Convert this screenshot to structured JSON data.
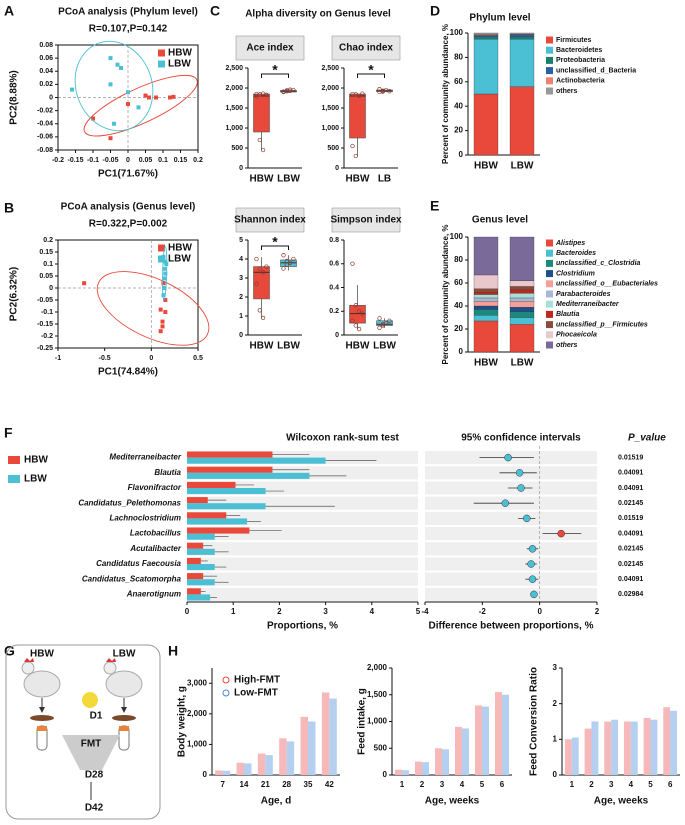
{
  "chart_data": [
    {
      "type": "scatter",
      "label": "A",
      "title": "PCoA analysis (Phylum level)",
      "subtitle": "R=0.107,P=0.142",
      "x_label": "PC1(71.67%)",
      "y_label": "PC2(8.88%)",
      "xlim": [
        -0.2,
        0.2
      ],
      "xticks": [
        -0.2,
        -0.15,
        -0.1,
        -0.05,
        0,
        0.05,
        0.1,
        0.15,
        0.2
      ],
      "ylim": [
        -0.08,
        0.08
      ],
      "yticks": [
        0.08,
        0.06,
        0.04,
        0.02,
        0,
        -0.02,
        -0.04,
        -0.06,
        -0.08
      ],
      "series": [
        {
          "name": "HBW",
          "color": "#e8493a",
          "x": [
            -0.1,
            -0.05,
            0.05,
            0.06,
            0.08,
            0.12,
            0.13,
            0.0
          ],
          "y": [
            -0.032,
            -0.062,
            0.003,
            0.0,
            0.0,
            0.0,
            0.001,
            -0.01
          ]
        },
        {
          "name": "LBW",
          "color": "#4bbfd4",
          "x": [
            -0.16,
            -0.05,
            -0.03,
            -0.02,
            -0.05,
            0.0,
            -0.04,
            0.03
          ],
          "y": [
            0.012,
            0.06,
            0.05,
            0.045,
            0.02,
            0.008,
            -0.04,
            -0.015
          ]
        }
      ]
    },
    {
      "type": "scatter",
      "label": "B",
      "title": "PCoA analysis (Genus level)",
      "subtitle": "R=0.322,P=0.002",
      "x_label": "PC1(74.84%)",
      "y_label": "PC2(6.32%)",
      "xlim": [
        -1,
        0.5
      ],
      "xticks": [
        -1,
        -0.5,
        0,
        0.5
      ],
      "ylim": [
        -0.25,
        0.2
      ],
      "yticks": [
        0.2,
        0.15,
        0.1,
        0.05,
        0,
        -0.05,
        -0.1,
        -0.15,
        -0.2,
        -0.25
      ],
      "series": [
        {
          "name": "HBW",
          "color": "#e8493a",
          "x": [
            -0.72,
            0.1,
            0.15,
            0.12,
            0.12,
            0.1,
            0.15,
            0.13
          ],
          "y": [
            0.02,
            -0.09,
            -0.1,
            -0.14,
            -0.16,
            -0.18,
            -0.05,
            0.02
          ]
        },
        {
          "name": "LBW",
          "color": "#4bbfd4",
          "x": [
            0.13,
            0.15,
            0.14,
            0.16,
            0.15,
            0.14,
            0.13,
            0.14
          ],
          "y": [
            0.13,
            0.11,
            0.08,
            0.1,
            0.06,
            0.04,
            -0.03,
            0.0
          ]
        }
      ]
    },
    {
      "type": "box",
      "label": "C",
      "title": "Alpha diversity on Genus level",
      "colors": [
        "#e8493a",
        "#4bbfd4"
      ],
      "panels": [
        {
          "title": "Ace index",
          "categories": [
            "HBW",
            "LBW"
          ],
          "ylim": [
            0,
            2500
          ],
          "yticks": [
            0,
            500,
            {
              "value": 1000,
              "label": "1,000"
            },
            {
              "value": 1500,
              "label": "1,500"
            },
            {
              "value": 2000,
              "label": "2,000"
            },
            {
              "value": 2500,
              "label": "2,500"
            }
          ],
          "boxes": [
            {
              "min": 450,
              "q1": 900,
              "median": 1800,
              "q3": 1850,
              "max": 1880
            },
            {
              "min": 1880,
              "q1": 1900,
              "median": 1920,
              "q3": 1940,
              "max": 1960
            }
          ],
          "points": [
            [
              1850,
              1840,
              1860,
              1830,
              1790,
              700,
              450
            ],
            [
              1900,
              1920,
              1930,
              1950,
              1910,
              1940,
              1960
            ]
          ],
          "annotation": "*"
        },
        {
          "title": "Chao index",
          "categories": [
            "HBW",
            "LB"
          ],
          "ylim": [
            0,
            2500
          ],
          "yticks": [
            0,
            500,
            {
              "value": 1000,
              "label": "1,000"
            },
            {
              "value": 1500,
              "label": "1,500"
            },
            {
              "value": 2000,
              "label": "2,000"
            },
            {
              "value": 2500,
              "label": "2,500"
            }
          ],
          "boxes": [
            {
              "min": 300,
              "q1": 750,
              "median": 1800,
              "q3": 1850,
              "max": 1870
            },
            {
              "min": 1890,
              "q1": 1910,
              "median": 1930,
              "q3": 1950,
              "max": 1970
            }
          ],
          "points": [
            [
              1850,
              1840,
              1800,
              1860,
              550,
              300
            ],
            [
              1900,
              1930,
              1950,
              1920,
              1970,
              1910
            ]
          ],
          "annotation": "*"
        },
        {
          "title": "Shannon index",
          "categories": [
            "HBW",
            "LBW"
          ],
          "ylim": [
            0,
            5
          ],
          "yticks": [
            0,
            1,
            2,
            3,
            4,
            5
          ],
          "boxes": [
            {
              "min": 0.9,
              "q1": 1.9,
              "median": 3.3,
              "q3": 3.6,
              "max": 4.1
            },
            {
              "min": 3.4,
              "q1": 3.6,
              "median": 3.8,
              "q3": 3.95,
              "max": 4.2
            }
          ],
          "points": [
            [
              4.0,
              3.5,
              3.3,
              3.6,
              2.7,
              1.3,
              0.9
            ],
            [
              3.5,
              3.7,
              3.8,
              4.0,
              4.2,
              3.9
            ]
          ],
          "annotation": "*"
        },
        {
          "title": "Simpson index",
          "categories": [
            "HBW",
            "LBW"
          ],
          "ylim": [
            0,
            0.8
          ],
          "yticks": [
            0,
            0.2,
            0.4,
            0.6,
            0.8
          ],
          "boxes": [
            {
              "min": 0.05,
              "q1": 0.1,
              "median": 0.18,
              "q3": 0.25,
              "max": 0.42
            },
            {
              "min": 0.06,
              "q1": 0.08,
              "median": 0.09,
              "q3": 0.12,
              "max": 0.14
            }
          ],
          "points": [
            [
              0.6,
              0.25,
              0.2,
              0.18,
              0.12,
              0.08,
              0.05
            ],
            [
              0.06,
              0.08,
              0.1,
              0.12,
              0.14,
              0.09
            ]
          ]
        }
      ]
    },
    {
      "type": "stacked_bar",
      "label": "D",
      "title": "Phylum level",
      "y_label": "Percent of community abundance, %",
      "categories": [
        "HBW",
        "LBW"
      ],
      "ylim": [
        0,
        100
      ],
      "yticks": [
        0,
        20,
        40,
        60,
        80,
        100
      ],
      "series": [
        {
          "name": "Firmicutes",
          "color": "#e8493a",
          "values": [
            50,
            56
          ]
        },
        {
          "name": "Bacteroidetes",
          "color": "#4bbfd4",
          "values": [
            45,
            39
          ]
        },
        {
          "name": "Proteobacteria",
          "color": "#1a7f6e",
          "values": [
            2,
            2
          ]
        },
        {
          "name": "unclassified_d_Bacteria",
          "color": "#2b5fa8",
          "values": [
            1,
            1.5
          ]
        },
        {
          "name": "Actinobacteria",
          "color": "#f08070",
          "values": [
            1,
            0.5
          ]
        },
        {
          "name": "others",
          "color": "#999999",
          "values": [
            1,
            1
          ]
        }
      ]
    },
    {
      "type": "stacked_bar",
      "label": "E",
      "title": "Genus level",
      "y_label": "Percent of community abundance, %",
      "legend_italic": true,
      "categories": [
        "HBW",
        "LBW"
      ],
      "ylim": [
        0,
        100
      ],
      "yticks": [
        0,
        20,
        40,
        60,
        80,
        100
      ],
      "series": [
        {
          "name": "Alistipes",
          "color": "#e8493a",
          "values": [
            27,
            24
          ]
        },
        {
          "name": "Bacteroides",
          "color": "#4bbfd4",
          "values": [
            5,
            6
          ]
        },
        {
          "name": "unclassified_c_Clostridia",
          "color": "#1a8a7a",
          "values": [
            5,
            5
          ]
        },
        {
          "name": "Clostridium",
          "color": "#1f4e8c",
          "values": [
            3,
            4
          ]
        },
        {
          "name": "unclassified_o__Eubacteriales",
          "color": "#f4a098",
          "values": [
            4,
            5
          ]
        },
        {
          "name": "Parabacteroides",
          "color": "#a7b7d8",
          "values": [
            3,
            3
          ]
        },
        {
          "name": "Mediterraneibacter",
          "color": "#a8e0d8",
          "values": [
            3,
            4
          ]
        },
        {
          "name": "Blautia",
          "color": "#c0281e",
          "values": [
            2,
            3
          ]
        },
        {
          "name": "unclassified_p__Firmicutes",
          "color": "#8b4a3a",
          "values": [
            3,
            3
          ]
        },
        {
          "name": "Phocaeicola",
          "color": "#e8c8cc",
          "values": [
            12,
            5
          ]
        },
        {
          "name": "others",
          "color": "#7a6a9a",
          "values": [
            33,
            38
          ]
        }
      ]
    },
    {
      "type": "wilcoxon",
      "label": "F",
      "title": "Wilcoxon rank-sum test",
      "ci_title": "95% confidence intervals",
      "p_title": "P_value",
      "x_label": "Proportions, %",
      "ci_x_label": "Difference between proportions, %",
      "categories": [
        "Mediterraneibacter",
        "Blautia",
        "Flavonifractor",
        "Candidatus_Pelethomonas",
        "Lachnoclostridium",
        "Lactobacillus",
        "Acutalibacter",
        "Candidatus Faecousia",
        "Candidatus_Scatomorpha",
        "Anaerotignum"
      ],
      "xlim": [
        0,
        5
      ],
      "xticks": [
        0,
        1,
        2,
        3,
        4,
        5
      ],
      "ci_xlim": [
        -4,
        2
      ],
      "ci_xticks": [
        -4,
        -2,
        0,
        2
      ],
      "series": [
        {
          "name": "HBW",
          "color": "#e8493a",
          "values": [
            1.85,
            1.85,
            1.05,
            0.45,
            0.85,
            1.35,
            0.35,
            0.3,
            0.35,
            0.3
          ],
          "errors": [
            0.8,
            0.8,
            0.4,
            0.4,
            0.3,
            0.7,
            0.2,
            0.15,
            0.3,
            0.1
          ]
        },
        {
          "name": "LBW",
          "color": "#4bbfd4",
          "values": [
            3.0,
            2.65,
            1.7,
            1.7,
            1.3,
            0.6,
            0.6,
            0.6,
            0.6,
            0.5
          ],
          "errors": [
            1.1,
            0.8,
            0.4,
            1.5,
            0.3,
            0.3,
            0.3,
            0.25,
            0.3,
            0.15
          ]
        }
      ],
      "ci": {
        "diff": [
          -1.1,
          -0.7,
          -0.65,
          -1.2,
          -0.45,
          0.75,
          -0.25,
          -0.3,
          -0.25,
          -0.2
        ],
        "low": [
          -2.1,
          -1.4,
          -1.1,
          -2.3,
          -0.75,
          0.1,
          -0.45,
          -0.5,
          -0.5,
          -0.3
        ],
        "high": [
          -0.2,
          -0.1,
          -0.25,
          -0.2,
          -0.15,
          1.45,
          -0.05,
          -0.1,
          -0.05,
          -0.08
        ]
      },
      "p_values": [
        0.01519,
        0.04091,
        0.04091,
        0.02145,
        0.01519,
        0.04091,
        0.02145,
        0.02145,
        0.04091,
        0.02984
      ]
    },
    {
      "type": "diagram",
      "label": "G",
      "texts": {
        "hbw": "HBW",
        "lbw": "LBW",
        "d1": "D1",
        "fmt": "FMT",
        "d28": "D28",
        "d42": "D42"
      }
    },
    {
      "type": "dot_bar",
      "label": "H",
      "x_label": "Age, d",
      "y_label": "Body weight, g",
      "categories": [
        "7",
        "14",
        "21",
        "28",
        "35",
        "42"
      ],
      "ylim": [
        0,
        3500
      ],
      "yticks": [
        0,
        {
          "value": 1000,
          "label": "1,000"
        },
        {
          "value": 2000,
          "label": "2,000"
        },
        {
          "value": 3000,
          "label": "3,000"
        }
      ],
      "series": [
        {
          "name": "High-FMT",
          "color": "#f6b8b8",
          "point_color": "#e8493a",
          "values": [
            150,
            400,
            700,
            1200,
            1900,
            2700
          ]
        },
        {
          "name": "Low-FMT",
          "color": "#b5cff0",
          "point_color": "#4a86d8",
          "values": [
            140,
            380,
            650,
            1100,
            1750,
            2500
          ]
        }
      ]
    },
    {
      "type": "dot_bar",
      "x_label": "Age, weeks",
      "y_label": "Feed intake, g",
      "categories": [
        "1",
        "2",
        "3",
        "4",
        "5",
        "6"
      ],
      "ylim": [
        0,
        2000
      ],
      "yticks": [
        0,
        500,
        {
          "value": 1000,
          "label": "1,000"
        },
        {
          "value": 1500,
          "label": "1,500"
        },
        {
          "value": 2000,
          "label": "2,000"
        }
      ],
      "series": [
        {
          "color": "#f6b8b8",
          "point_color": "#e8493a",
          "values": [
            100,
            250,
            500,
            900,
            1300,
            1550
          ]
        },
        {
          "color": "#b5cff0",
          "point_color": "#4a86d8",
          "values": [
            90,
            240,
            480,
            870,
            1280,
            1500
          ]
        }
      ]
    },
    {
      "type": "dot_bar",
      "x_label": "Age, weeks",
      "y_label": "Feed Conversion Ratio",
      "categories": [
        "1",
        "2",
        "3",
        "4",
        "5",
        "6"
      ],
      "ylim": [
        0,
        3
      ],
      "yticks": [
        0,
        1,
        2,
        3
      ],
      "series": [
        {
          "color": "#f6b8b8",
          "point_color": "#e8493a",
          "values": [
            1.0,
            1.3,
            1.5,
            1.5,
            1.6,
            1.9
          ]
        },
        {
          "color": "#b5cff0",
          "point_color": "#4a86d8",
          "values": [
            1.05,
            1.5,
            1.55,
            1.5,
            1.55,
            1.8
          ]
        }
      ]
    }
  ]
}
